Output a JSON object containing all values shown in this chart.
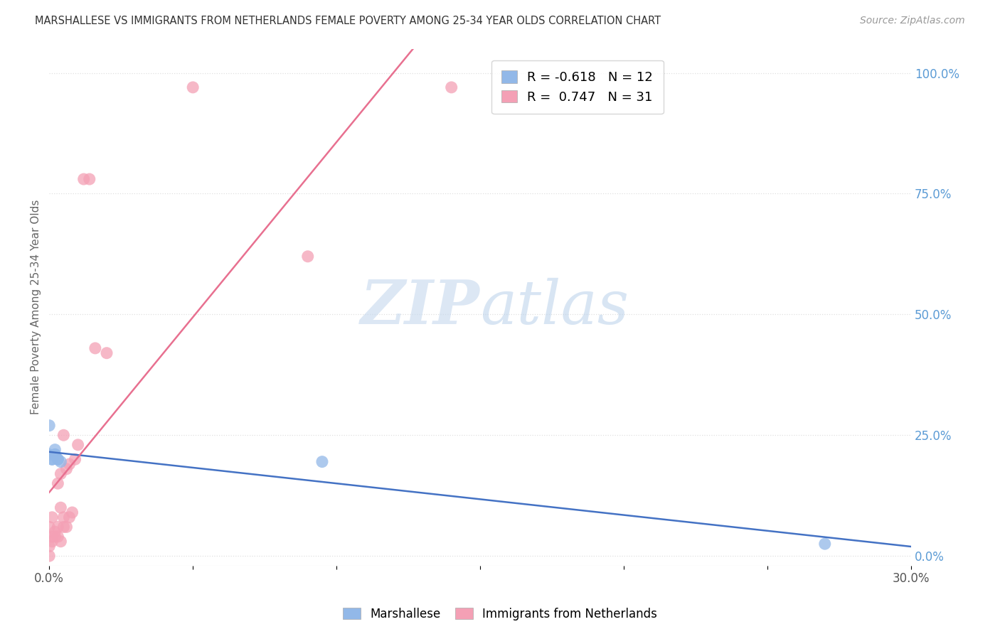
{
  "title": "MARSHALLESE VS IMMIGRANTS FROM NETHERLANDS FEMALE POVERTY AMONG 25-34 YEAR OLDS CORRELATION CHART",
  "source": "Source: ZipAtlas.com",
  "ylabel": "Female Poverty Among 25-34 Year Olds",
  "xlim": [
    0.0,
    0.3
  ],
  "ylim": [
    -0.02,
    1.05
  ],
  "right_yticks": [
    0.0,
    0.25,
    0.5,
    0.75,
    1.0
  ],
  "right_yticklabels": [
    "0.0%",
    "25.0%",
    "50.0%",
    "75.0%",
    "100.0%"
  ],
  "xticks": [
    0.0,
    0.05,
    0.1,
    0.15,
    0.2,
    0.25,
    0.3
  ],
  "xticklabels": [
    "0.0%",
    "",
    "",
    "",
    "",
    "",
    "30.0%"
  ],
  "marshallese_color": "#92b8e8",
  "netherlands_color": "#f4a0b5",
  "marshallese_line_color": "#4472c4",
  "netherlands_line_color": "#e87090",
  "watermark_zip": "ZIP",
  "watermark_atlas": "atlas",
  "legend_R_marshallese": "-0.618",
  "legend_N_marshallese": "12",
  "legend_R_netherlands": "0.747",
  "legend_N_netherlands": "31",
  "marshallese_x": [
    0.0,
    0.0,
    0.001,
    0.001,
    0.002,
    0.002,
    0.002,
    0.003,
    0.003,
    0.004,
    0.095,
    0.27
  ],
  "marshallese_y": [
    0.27,
    0.21,
    0.2,
    0.2,
    0.22,
    0.21,
    0.21,
    0.2,
    0.2,
    0.195,
    0.195,
    0.025
  ],
  "netherlands_x": [
    0.0,
    0.0,
    0.0,
    0.001,
    0.001,
    0.001,
    0.002,
    0.002,
    0.003,
    0.003,
    0.003,
    0.004,
    0.004,
    0.004,
    0.005,
    0.005,
    0.005,
    0.006,
    0.006,
    0.007,
    0.007,
    0.008,
    0.009,
    0.01,
    0.012,
    0.014,
    0.016,
    0.02,
    0.05,
    0.09,
    0.14
  ],
  "netherlands_y": [
    0.0,
    0.02,
    0.06,
    0.03,
    0.04,
    0.08,
    0.04,
    0.05,
    0.04,
    0.06,
    0.15,
    0.03,
    0.1,
    0.17,
    0.06,
    0.08,
    0.25,
    0.06,
    0.18,
    0.08,
    0.19,
    0.09,
    0.2,
    0.23,
    0.78,
    0.78,
    0.43,
    0.42,
    0.97,
    0.62,
    0.97
  ],
  "background_color": "#ffffff",
  "grid_color": "#e0e0e0",
  "grid_linestyle": ":",
  "netherlands_line_xlim": [
    0.0,
    0.145
  ],
  "marshallese_line_xlim": [
    0.0,
    0.3
  ]
}
